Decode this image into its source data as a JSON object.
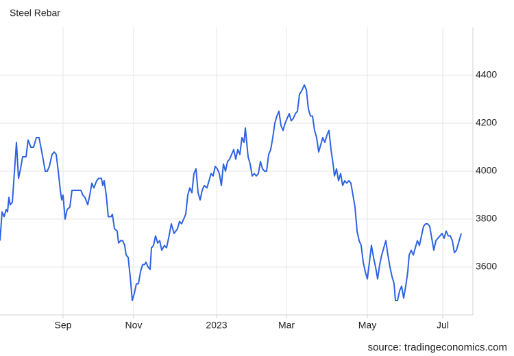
{
  "chart_data": {
    "type": "line",
    "title": "Steel Rebar",
    "source": "source: tradingeconomics.com",
    "grid": true,
    "y_axis_side": "right",
    "xlim": [
      0,
      690
    ],
    "ylim": [
      3400,
      4600
    ],
    "xticks": [
      {
        "value": 92,
        "label": "Sep"
      },
      {
        "value": 195,
        "label": "Nov"
      },
      {
        "value": 316,
        "label": "2023"
      },
      {
        "value": 418,
        "label": "Mar"
      },
      {
        "value": 536,
        "label": "May"
      },
      {
        "value": 646,
        "label": "Jul"
      }
    ],
    "yticks": [
      3600,
      3800,
      4000,
      4200,
      4400
    ],
    "series": [
      {
        "name": "Steel Rebar",
        "color": "#2d62e0",
        "x": [
          0,
          3,
          6,
          9,
          11,
          13,
          15,
          18,
          24,
          27,
          30,
          33,
          38,
          41,
          45,
          49,
          53,
          57,
          61,
          66,
          69,
          72,
          76,
          79,
          82,
          85,
          88,
          90,
          92,
          95,
          98,
          102,
          105,
          110,
          118,
          121,
          124,
          128,
          131,
          134,
          137,
          141,
          144,
          148,
          150,
          152,
          155,
          158,
          162,
          164,
          167,
          171,
          173,
          176,
          179,
          182,
          184,
          187,
          190,
          193,
          196,
          199,
          202,
          205,
          208,
          211,
          213,
          216,
          219,
          221,
          224,
          227,
          230,
          233,
          236,
          240,
          243,
          246,
          250,
          254,
          259,
          262,
          265,
          268,
          271,
          274,
          277,
          280,
          283,
          286,
          289,
          292,
          295,
          298,
          302,
          305,
          308,
          311,
          314,
          317,
          320,
          323,
          326,
          329,
          332,
          335,
          338,
          341,
          344,
          347,
          350,
          353,
          356,
          358,
          362,
          365,
          368,
          371,
          374,
          377,
          380,
          383,
          386,
          389,
          392,
          395,
          398,
          401,
          404,
          407,
          410,
          413,
          416,
          419,
          422,
          425,
          428,
          431,
          434,
          437,
          441,
          444,
          447,
          450,
          453,
          456,
          459,
          462,
          465,
          468,
          471,
          474,
          477,
          480,
          483,
          486,
          488,
          491,
          494,
          497,
          500,
          503,
          506,
          509,
          512,
          515,
          518,
          521,
          524,
          527,
          530,
          533,
          536,
          539,
          542,
          545,
          548,
          551,
          554,
          557,
          560,
          563,
          566,
          569,
          572,
          575,
          577,
          580,
          583,
          586,
          589,
          592,
          595,
          597,
          600,
          603,
          606,
          609,
          612,
          615,
          618,
          621,
          624,
          627,
          630,
          633,
          636,
          639,
          642,
          645,
          648,
          651,
          654,
          657,
          660,
          663,
          666,
          669,
          673
        ],
        "values": [
          3710,
          3830,
          3810,
          3840,
          3830,
          3890,
          3860,
          3870,
          4120,
          3970,
          4010,
          4060,
          4060,
          4130,
          4100,
          4100,
          4140,
          4140,
          4080,
          4000,
          4000,
          4020,
          4070,
          4080,
          4070,
          4000,
          3920,
          3880,
          3900,
          3800,
          3840,
          3850,
          3920,
          3920,
          3920,
          3900,
          3890,
          3860,
          3900,
          3950,
          3930,
          3960,
          3970,
          3970,
          3940,
          3960,
          3900,
          3810,
          3810,
          3820,
          3760,
          3750,
          3700,
          3710,
          3710,
          3690,
          3650,
          3640,
          3560,
          3460,
          3490,
          3530,
          3530,
          3580,
          3610,
          3610,
          3620,
          3600,
          3590,
          3680,
          3690,
          3730,
          3700,
          3710,
          3670,
          3690,
          3680,
          3720,
          3780,
          3740,
          3760,
          3790,
          3780,
          3800,
          3820,
          3900,
          3930,
          3910,
          3990,
          4010,
          3910,
          3880,
          3920,
          3940,
          3930,
          3960,
          3990,
          3980,
          4020,
          4010,
          3990,
          3940,
          4030,
          4000,
          4040,
          4050,
          4070,
          4090,
          4050,
          4090,
          4070,
          4140,
          4120,
          4180,
          4060,
          4030,
          3980,
          3990,
          3980,
          3990,
          4040,
          4010,
          4000,
          4000,
          4070,
          4090,
          4140,
          4200,
          4230,
          4250,
          4190,
          4170,
          4200,
          4220,
          4240,
          4210,
          4220,
          4240,
          4250,
          4320,
          4340,
          4360,
          4340,
          4260,
          4230,
          4230,
          4170,
          4140,
          4080,
          4110,
          4140,
          4120,
          4150,
          4170,
          4090,
          4030,
          3980,
          4010,
          3960,
          3990,
          3940,
          3960,
          3950,
          3960,
          3950,
          3900,
          3850,
          3750,
          3710,
          3690,
          3620,
          3580,
          3550,
          3620,
          3690,
          3640,
          3600,
          3550,
          3610,
          3650,
          3680,
          3710,
          3650,
          3600,
          3560,
          3530,
          3460,
          3460,
          3500,
          3520,
          3470,
          3520,
          3580,
          3650,
          3670,
          3650,
          3680,
          3710,
          3690,
          3730,
          3770,
          3780,
          3780,
          3770,
          3720,
          3670,
          3710,
          3720,
          3730,
          3740,
          3720,
          3750,
          3730,
          3730,
          3710,
          3660,
          3670,
          3700,
          3740
        ]
      }
    ]
  }
}
